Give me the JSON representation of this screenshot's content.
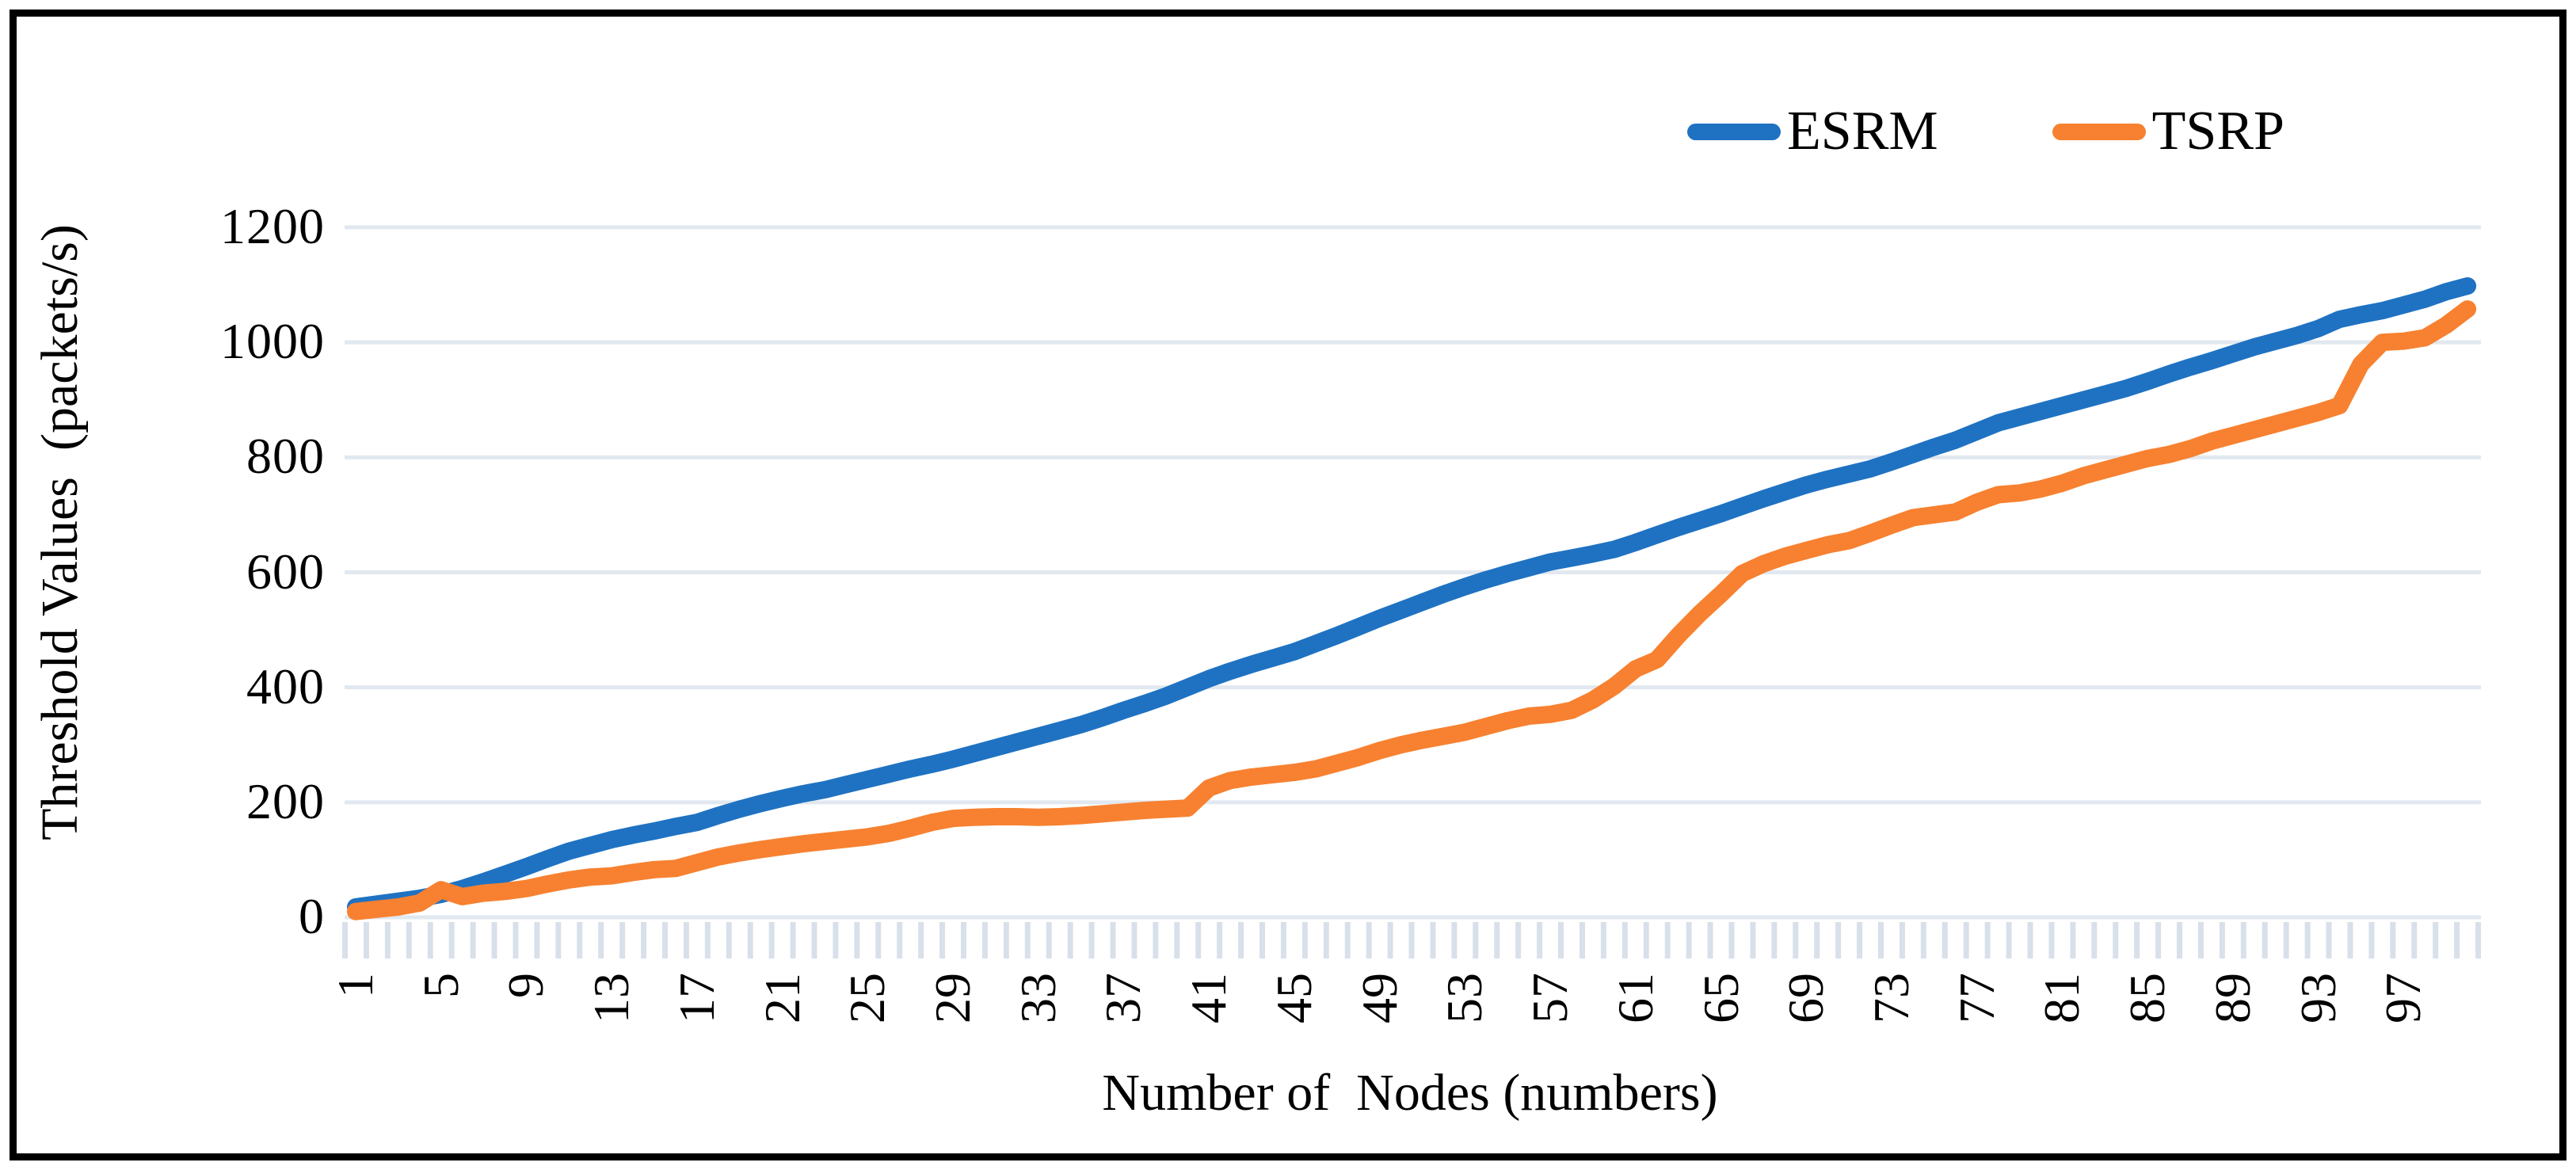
{
  "figure": {
    "background": "#ffffff",
    "frame_border_color": "#000000",
    "grid_color": "#e2e8ef",
    "tick_color": "#d8e0ea",
    "text_color": "#000000"
  },
  "legend": {
    "position": "top-right",
    "items": [
      {
        "label": "ESRM",
        "color": "#1f72c2"
      },
      {
        "label": "TSRP",
        "color": "#f78130"
      }
    ]
  },
  "chart_data": {
    "type": "line",
    "title": "",
    "xlabel": "Number of  Nodes (numbers)",
    "ylabel": "Threshold Values  (packets/s)",
    "xlim": [
      1,
      100
    ],
    "ylim": [
      0,
      1200
    ],
    "grid": true,
    "legend_position": "top-right",
    "y_ticks": [
      0,
      200,
      400,
      600,
      800,
      1000,
      1200
    ],
    "y_tick_labels": [
      "0",
      "200",
      "400",
      "600",
      "800",
      "1000",
      "1200"
    ],
    "x_tick_labels": [
      "1",
      "5",
      "9",
      "13",
      "17",
      "21",
      "25",
      "29",
      "33",
      "37",
      "41",
      "45",
      "49",
      "53",
      "57",
      "61",
      "65",
      "69",
      "73",
      "77",
      "81",
      "85",
      "89",
      "93",
      "97"
    ],
    "x_start": 1,
    "x_step": 1,
    "series": [
      {
        "name": "ESRM",
        "color": "#1f72c2",
        "values": [
          18,
          23,
          28,
          33,
          40,
          50,
          62,
          75,
          88,
          102,
          115,
          125,
          135,
          143,
          150,
          158,
          165,
          177,
          188,
          198,
          207,
          215,
          222,
          231,
          240,
          249,
          258,
          266,
          275,
          285,
          295,
          305,
          315,
          325,
          335,
          347,
          360,
          372,
          385,
          400,
          415,
          428,
          440,
          451,
          462,
          476,
          490,
          505,
          520,
          534,
          548,
          562,
          575,
          587,
          598,
          608,
          618,
          625,
          632,
          640,
          652,
          665,
          678,
          690,
          702,
          715,
          728,
          740,
          752,
          762,
          771,
          780,
          792,
          805,
          818,
          830,
          845,
          860,
          870,
          880,
          890,
          900,
          910,
          920,
          932,
          945,
          957,
          968,
          980,
          992,
          1002,
          1012,
          1024,
          1040,
          1048,
          1055,
          1065,
          1075,
          1088,
          1098
        ]
      },
      {
        "name": "TSRP",
        "color": "#f78130",
        "values": [
          10,
          14,
          18,
          25,
          48,
          36,
          42,
          45,
          50,
          58,
          65,
          70,
          72,
          78,
          83,
          85,
          95,
          105,
          112,
          118,
          123,
          128,
          132,
          136,
          140,
          146,
          155,
          165,
          172,
          174,
          175,
          175,
          174,
          175,
          177,
          180,
          183,
          186,
          188,
          190,
          225,
          238,
          244,
          248,
          252,
          258,
          268,
          278,
          290,
          300,
          308,
          315,
          322,
          332,
          342,
          350,
          353,
          360,
          378,
          402,
          432,
          448,
          490,
          528,
          562,
          598,
          615,
          628,
          638,
          648,
          655,
          668,
          682,
          695,
          700,
          705,
          722,
          735,
          738,
          745,
          755,
          768,
          778,
          788,
          798,
          805,
          815,
          828,
          838,
          848,
          858,
          868,
          878,
          890,
          962,
          1000,
          1002,
          1008,
          1030,
          1058
        ]
      }
    ]
  }
}
